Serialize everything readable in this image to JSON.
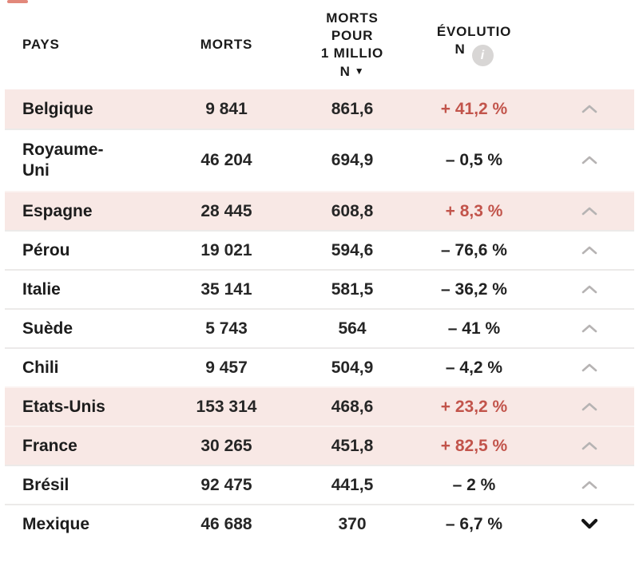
{
  "colors": {
    "highlight_row_bg": "#f8e8e5",
    "positive_text": "#c2544b",
    "chevron_up": "#b6b3b3",
    "chevron_down": "#141414",
    "info_icon_bg": "#d8d6d5",
    "separator": "#eceae9"
  },
  "header": {
    "pays": "PAYS",
    "morts": "MORTS",
    "morts_pour_million_lines": [
      "MORTS",
      "POUR",
      "1 MILLIO",
      "N"
    ],
    "sort_icon": "▼",
    "evolution_lines": [
      "ÉVOLUTIO",
      "N"
    ],
    "info_icon": "i"
  },
  "rows": [
    {
      "name_lines": [
        "Belgique"
      ],
      "deaths": "9 841",
      "per_million": "861,6",
      "evolution": "+ 41,2 %",
      "positive": true,
      "highlighted": true,
      "chevron": "up"
    },
    {
      "name_lines": [
        "Royaume-",
        "Uni"
      ],
      "deaths": "46 204",
      "per_million": "694,9",
      "evolution": "– 0,5 %",
      "positive": false,
      "highlighted": false,
      "chevron": "up"
    },
    {
      "name_lines": [
        "Espagne"
      ],
      "deaths": "28 445",
      "per_million": "608,8",
      "evolution": "+ 8,3 %",
      "positive": true,
      "highlighted": true,
      "chevron": "up"
    },
    {
      "name_lines": [
        "Pérou"
      ],
      "deaths": "19 021",
      "per_million": "594,6",
      "evolution": "– 76,6 %",
      "positive": false,
      "highlighted": false,
      "chevron": "up"
    },
    {
      "name_lines": [
        "Italie"
      ],
      "deaths": "35 141",
      "per_million": "581,5",
      "evolution": "– 36,2 %",
      "positive": false,
      "highlighted": false,
      "chevron": "up"
    },
    {
      "name_lines": [
        "Suède"
      ],
      "deaths": "5 743",
      "per_million": "564",
      "evolution": "– 41 %",
      "positive": false,
      "highlighted": false,
      "chevron": "up"
    },
    {
      "name_lines": [
        "Chili"
      ],
      "deaths": "9 457",
      "per_million": "504,9",
      "evolution": "– 4,2 %",
      "positive": false,
      "highlighted": false,
      "chevron": "up"
    },
    {
      "name_lines": [
        "Etats-Unis"
      ],
      "deaths": "153 314",
      "per_million": "468,6",
      "evolution": "+ 23,2 %",
      "positive": true,
      "highlighted": true,
      "chevron": "up"
    },
    {
      "name_lines": [
        "France"
      ],
      "deaths": "30 265",
      "per_million": "451,8",
      "evolution": "+ 82,5 %",
      "positive": true,
      "highlighted": true,
      "chevron": "up"
    },
    {
      "name_lines": [
        "Brésil"
      ],
      "deaths": "92 475",
      "per_million": "441,5",
      "evolution": "– 2 %",
      "positive": false,
      "highlighted": false,
      "chevron": "up"
    },
    {
      "name_lines": [
        "Mexique"
      ],
      "deaths": "46 688",
      "per_million": "370",
      "evolution": "– 6,7 %",
      "positive": false,
      "highlighted": false,
      "chevron": "down"
    }
  ]
}
